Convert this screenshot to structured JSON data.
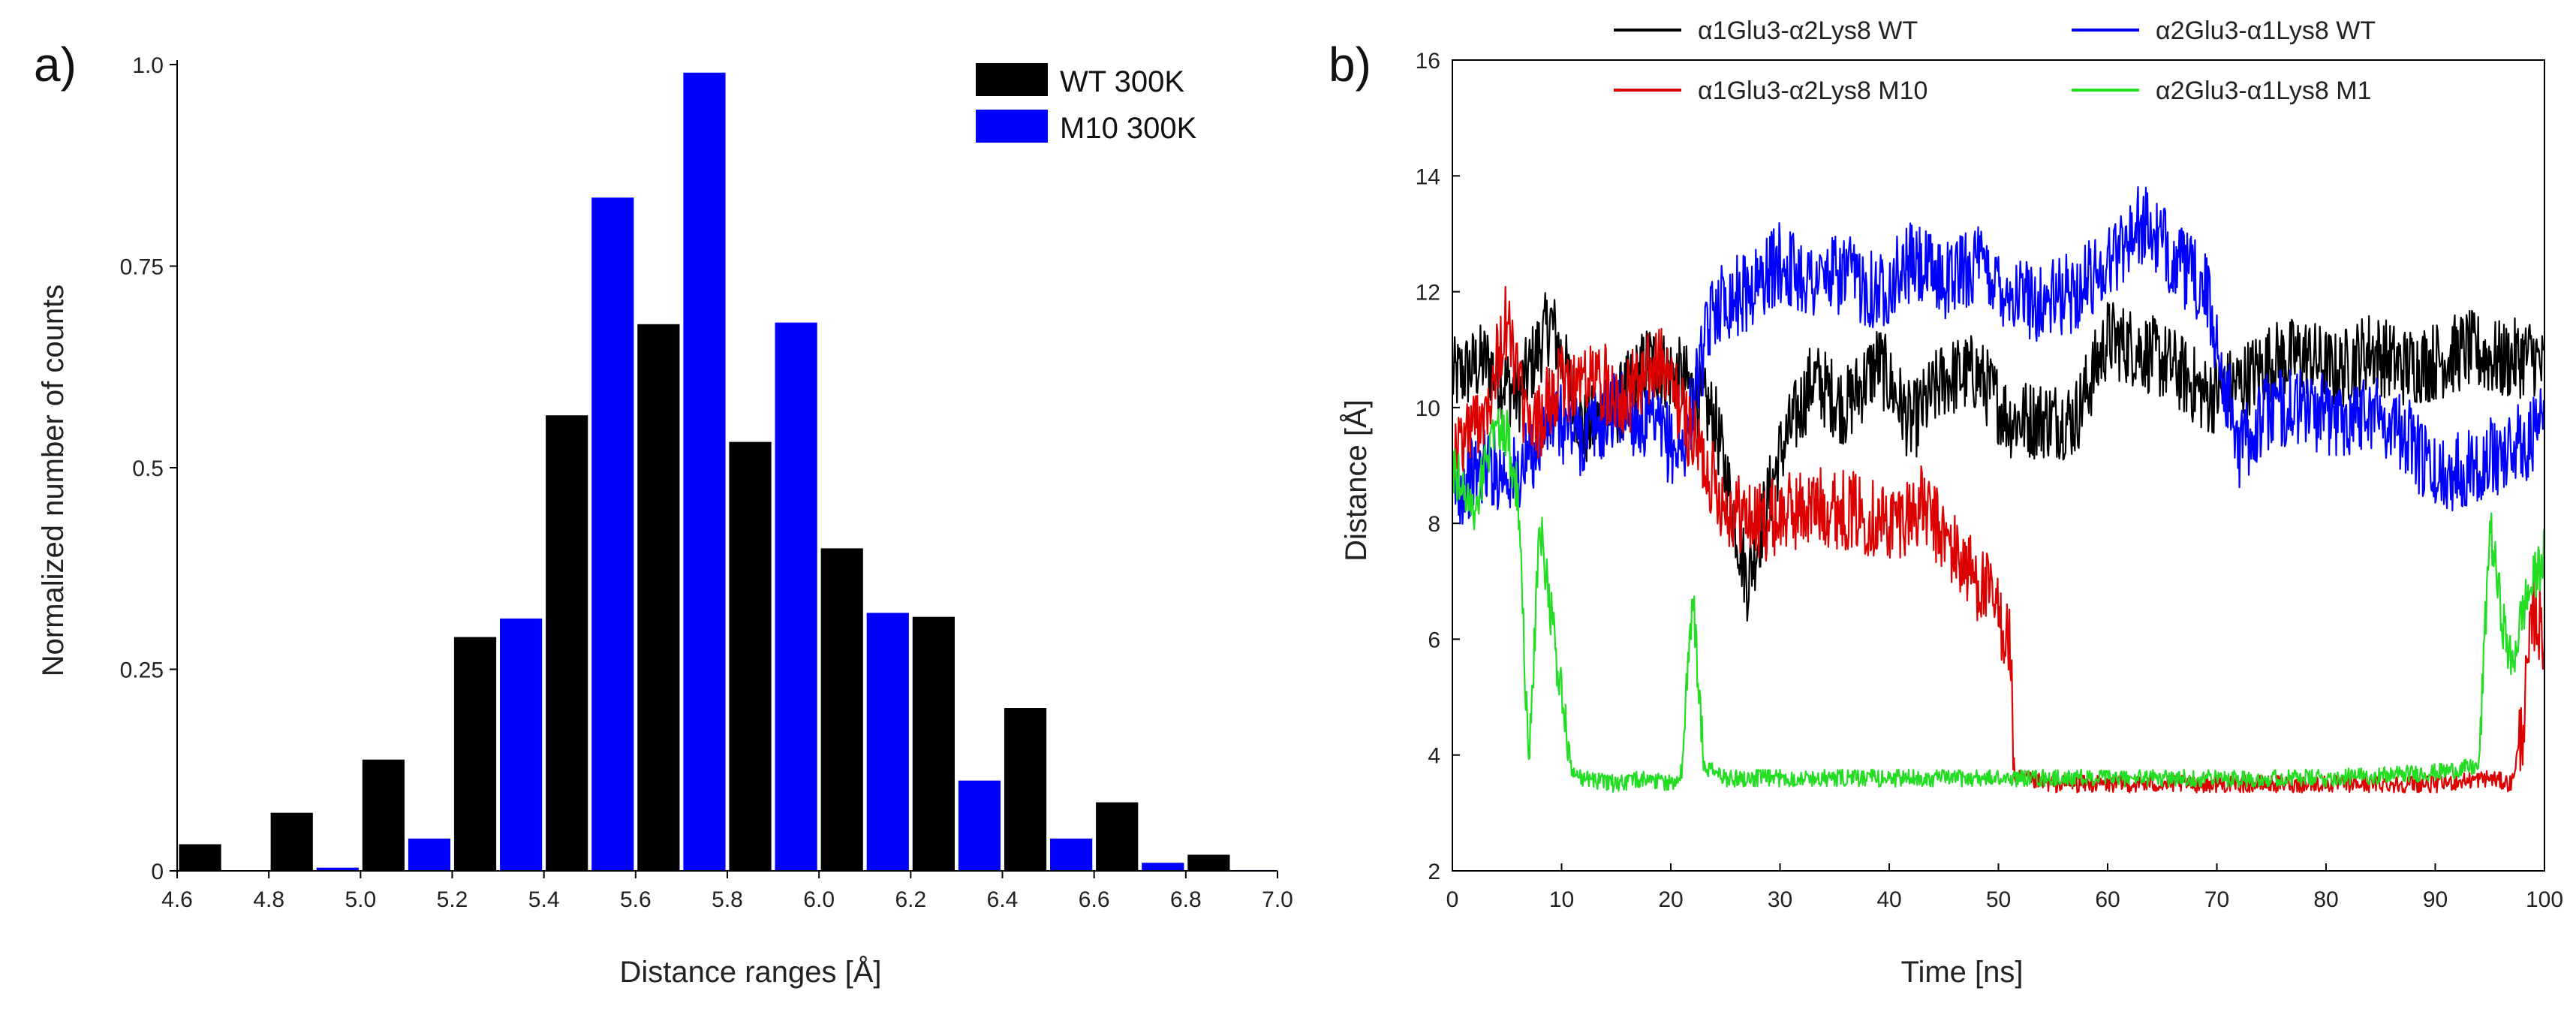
{
  "chart_data": [
    {
      "type": "bar",
      "panel_label": "a)",
      "xlabel": "Distance ranges [Å]",
      "ylabel": "Normalized number of counts",
      "xlim": [
        4.6,
        7.0
      ],
      "ylim": [
        0,
        1.0
      ],
      "x_ticks": [
        "4.6",
        "4.8",
        "5.0",
        "5.2",
        "5.4",
        "5.6",
        "5.8",
        "6.0",
        "6.2",
        "6.4",
        "6.6",
        "6.8",
        "7.0"
      ],
      "y_ticks": [
        "0",
        "0.25",
        "0.5",
        "0.75",
        "1.0"
      ],
      "categories": [
        4.7,
        4.9,
        5.1,
        5.3,
        5.5,
        5.7,
        5.9,
        6.1,
        6.3,
        6.5,
        6.7,
        6.9
      ],
      "series": [
        {
          "name": "WT 300K",
          "color": "#000000",
          "values": [
            0.033,
            0.072,
            0.138,
            0.29,
            0.565,
            0.678,
            0.532,
            0.4,
            0.315,
            0.202,
            0.085,
            0.02
          ]
        },
        {
          "name": "M10 300K",
          "color": "#0000ff",
          "values": [
            0.0,
            0.004,
            0.04,
            0.313,
            0.835,
            0.99,
            0.68,
            0.32,
            0.112,
            0.04,
            0.01,
            0.001
          ]
        }
      ],
      "legend_position": "top-right"
    },
    {
      "type": "line",
      "panel_label": "b)",
      "xlabel": "Time [ns]",
      "ylabel": "Distance [Å]",
      "xlim": [
        0,
        100
      ],
      "ylim": [
        2,
        16
      ],
      "x_ticks": [
        "0",
        "10",
        "20",
        "30",
        "40",
        "50",
        "60",
        "70",
        "80",
        "90",
        "100"
      ],
      "y_ticks": [
        "2",
        "4",
        "6",
        "8",
        "10",
        "12",
        "14",
        "16"
      ],
      "series": [
        {
          "name": "α1Glu3-α2Lys8 WT",
          "color": "#000000",
          "x": [
            0,
            3,
            6,
            9,
            12,
            15,
            18,
            21,
            24,
            27,
            30,
            33,
            36,
            39,
            42,
            45,
            48,
            51,
            54,
            57,
            60,
            63,
            66,
            69,
            72,
            75,
            78,
            81,
            84,
            87,
            90,
            93,
            96,
            99,
            100
          ],
          "y": [
            10.5,
            10.8,
            10.2,
            11.5,
            9.6,
            10.0,
            10.8,
            10.5,
            9.8,
            7.0,
            9.2,
            10.5,
            10.0,
            10.8,
            9.7,
            10.5,
            10.6,
            9.8,
            9.8,
            9.8,
            11.2,
            11.0,
            10.7,
            10.2,
            10.4,
            10.8,
            10.9,
            10.6,
            11.0,
            10.7,
            10.8,
            11.0,
            10.8,
            10.9,
            10.6
          ]
        },
        {
          "name": "α2Glu3-α1Lys8 WT",
          "color": "#0000ff",
          "x": [
            0,
            3,
            6,
            9,
            12,
            15,
            18,
            21,
            24,
            27,
            30,
            33,
            36,
            39,
            42,
            45,
            48,
            51,
            54,
            57,
            60,
            63,
            66,
            69,
            72,
            75,
            78,
            81,
            84,
            87,
            90,
            93,
            96,
            99,
            100
          ],
          "y": [
            8.5,
            9.0,
            8.8,
            9.8,
            9.5,
            10.0,
            9.7,
            9.2,
            11.8,
            12.0,
            12.5,
            12.2,
            12.3,
            12.0,
            12.5,
            12.2,
            12.5,
            12.0,
            11.8,
            12.0,
            12.5,
            13.2,
            12.6,
            12.0,
            9.3,
            10.0,
            10.0,
            9.8,
            10.0,
            9.6,
            8.8,
            9.0,
            9.2,
            9.5,
            9.8
          ]
        },
        {
          "name": "α1Glu3-α2Lys8 M10",
          "color": "#dd0000",
          "x": [
            0,
            3,
            5,
            7,
            10,
            13,
            16,
            19,
            22,
            25,
            28,
            31,
            34,
            37,
            40,
            43,
            46,
            49,
            51,
            51.5,
            55,
            60,
            65,
            70,
            75,
            80,
            85,
            90,
            95,
            97,
            98,
            99,
            100
          ],
          "y": [
            9.2,
            10.0,
            11.5,
            9.5,
            10.4,
            10.5,
            10.2,
            10.8,
            9.5,
            8.3,
            8.0,
            8.2,
            8.3,
            8.2,
            8.0,
            8.3,
            7.5,
            6.8,
            6.0,
            3.6,
            3.5,
            3.5,
            3.5,
            3.5,
            3.5,
            3.5,
            3.5,
            3.5,
            3.6,
            3.5,
            4.5,
            6.5,
            6.0
          ]
        },
        {
          "name": "α2Glu3-α1Lys8 M1",
          "color": "#22dd22",
          "x": [
            0,
            2,
            4,
            5,
            6,
            7,
            8,
            9,
            10,
            11,
            12,
            15,
            18,
            20,
            21,
            22,
            23,
            25,
            30,
            40,
            50,
            60,
            70,
            80,
            90,
            94,
            95,
            96,
            97,
            98,
            99,
            100
          ],
          "y": [
            9.0,
            8.2,
            9.8,
            9.5,
            8.5,
            3.8,
            8.0,
            6.5,
            5.0,
            3.7,
            3.6,
            3.5,
            3.6,
            3.5,
            3.7,
            6.8,
            3.8,
            3.6,
            3.6,
            3.6,
            3.6,
            3.6,
            3.6,
            3.6,
            3.7,
            3.8,
            8.0,
            6.5,
            5.5,
            6.5,
            7.0,
            7.5
          ]
        }
      ],
      "legend_position": "top"
    }
  ]
}
